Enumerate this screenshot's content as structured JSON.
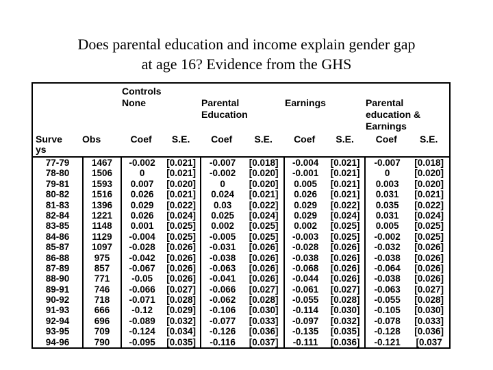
{
  "colors": {
    "background": "#ffffff",
    "text": "#000000",
    "table_border": "#000000"
  },
  "slide": {
    "title_line1": "Does parental education and income explain gender gap",
    "title_line2": "at age 16? Evidence from the GHS"
  },
  "table": {
    "controls_label": "Controls",
    "groups": [
      {
        "label": "None"
      },
      {
        "label": "Parental Education"
      },
      {
        "label": "Earnings"
      },
      {
        "label": "Parental education & Earnings"
      }
    ],
    "col_survey": "Surveys",
    "col_obs": "Obs",
    "col_coef": "Coef",
    "col_se": "S.E.",
    "rows": [
      [
        "77-79",
        "1467",
        "-0.002",
        "[0.021]",
        "-0.007",
        "[0.018]",
        "-0.004",
        "[0.021]",
        "-0.007",
        "[0.018]"
      ],
      [
        "78-80",
        "1506",
        "0",
        "[0.021]",
        "-0.002",
        "[0.020]",
        "-0.001",
        "[0.021]",
        "0",
        "[0.020]"
      ],
      [
        "79-81",
        "1593",
        "0.007",
        "[0.020]",
        "0",
        "[0.020]",
        "0.005",
        "[0.021]",
        "0.003",
        "[0.020]"
      ],
      [
        "80-82",
        "1516",
        "0.026",
        "[0.021]",
        "0.024",
        "[0.021]",
        "0.026",
        "[0.021]",
        "0.031",
        "[0.021]"
      ],
      [
        "81-83",
        "1396",
        "0.029",
        "[0.022]",
        "0.03",
        "[0.022]",
        "0.029",
        "[0.022]",
        "0.035",
        "[0.022]"
      ],
      [
        "82-84",
        "1221",
        "0.026",
        "[0.024]",
        "0.025",
        "[0.024]",
        "0.029",
        "[0.024]",
        "0.031",
        "[0.024]"
      ],
      [
        "83-85",
        "1148",
        "0.001",
        "[0.025]",
        "0.002",
        "[0.025]",
        "0.002",
        "[0.025]",
        "0.005",
        "[0.025]"
      ],
      [
        "84-86",
        "1129",
        "-0.004",
        "[0.025]",
        "-0.005",
        "[0.025]",
        "-0.003",
        "[0.025]",
        "-0.002",
        "[0.025]"
      ],
      [
        "85-87",
        "1097",
        "-0.028",
        "[0.026]",
        "-0.031",
        "[0.026]",
        "-0.028",
        "[0.026]",
        "-0.032",
        "[0.026]"
      ],
      [
        "86-88",
        "975",
        "-0.042",
        "[0.026]",
        "-0.038",
        "[0.026]",
        "-0.038",
        "[0.026]",
        "-0.038",
        "[0.026]"
      ],
      [
        "87-89",
        "857",
        "-0.067",
        "[0.026]",
        "-0.063",
        "[0.026]",
        "-0.068",
        "[0.026]",
        "-0.064",
        "[0.026]"
      ],
      [
        "88-90",
        "771",
        "-0.05",
        "[0.026]",
        "-0.041",
        "[0.026]",
        "-0.044",
        "[0.026]",
        "-0.038",
        "[0.026]"
      ],
      [
        "89-91",
        "746",
        "-0.066",
        "[0.027]",
        "-0.066",
        "[0.027]",
        "-0.061",
        "[0.027]",
        "-0.063",
        "[0.027]"
      ],
      [
        "90-92",
        "718",
        "-0.071",
        "[0.028]",
        "-0.062",
        "[0.028]",
        "-0.055",
        "[0.028]",
        "-0.055",
        "[0.028]"
      ],
      [
        "91-93",
        "666",
        "-0.12",
        "[0.029]",
        "-0.106",
        "[0.030]",
        "-0.114",
        "[0.030]",
        "-0.105",
        "[0.030]"
      ],
      [
        "92-94",
        "696",
        "-0.089",
        "[0.032]",
        "-0.077",
        "[0.033]",
        "-0.097",
        "[0.032]",
        "-0.078",
        "[0.033]"
      ],
      [
        "93-95",
        "709",
        "-0.124",
        "[0.034]",
        "-0.126",
        "[0.036]",
        "-0.135",
        "[0.035]",
        "-0.128",
        "[0.036]"
      ],
      [
        "94-96",
        "790",
        "-0.095",
        "[0.035]",
        "-0.116",
        "[0.037]",
        "-0.111",
        "[0.036]",
        "-0.121",
        "[0.037"
      ]
    ]
  }
}
